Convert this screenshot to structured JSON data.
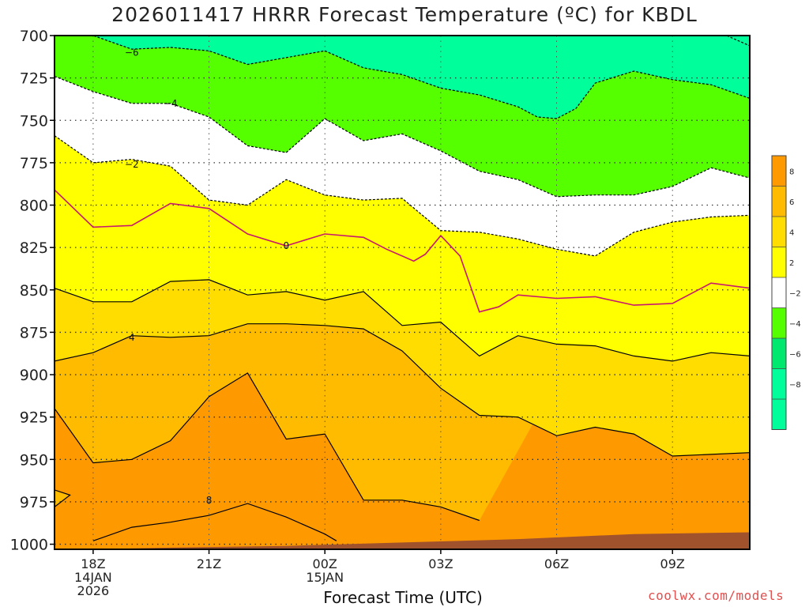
{
  "title": "2026011417 HRRR Forecast Temperature (ºC) for KBDL",
  "credit": "coolwx.com/models",
  "colors": {
    "bands": {
      "lt_-8": "#00ff9a",
      "-8_-6": "#00ff9a",
      "-6_-4": "#00e86e",
      "-4_-2": "#55ff00",
      "-2_2": "#ffffff",
      "2_4": "#ffff00",
      "4_6": "#ffdd00",
      "6_8": "#ffbb00",
      "gt_8": "#ff9900"
    },
    "zero_contour": "#c8186e",
    "ground": "#a0522d"
  },
  "chart_data": {
    "type": "contour",
    "title": "2026011417 HRRR Forecast Temperature (ºC) for KBDL",
    "xlabel": "Forecast Time (UTC)",
    "ylabel": "",
    "x_ticks": [
      {
        "hour": 1,
        "label": "18Z",
        "sub": [
          "14JAN",
          "2026"
        ]
      },
      {
        "hour": 4,
        "label": "21Z",
        "sub": []
      },
      {
        "hour": 7,
        "label": "00Z",
        "sub": [
          "15JAN"
        ]
      },
      {
        "hour": 10,
        "label": "03Z",
        "sub": []
      },
      {
        "hour": 13,
        "label": "06Z",
        "sub": []
      },
      {
        "hour": 16,
        "label": "09Z",
        "sub": []
      }
    ],
    "xlim": [
      0,
      18
    ],
    "y_ticks": [
      700,
      725,
      750,
      775,
      800,
      825,
      850,
      875,
      900,
      925,
      950,
      975,
      1000
    ],
    "ylim": [
      1003,
      700
    ],
    "colorbar": {
      "levels": [
        8,
        6,
        4,
        2,
        -2,
        -4,
        -6,
        -8
      ]
    },
    "contours": [
      {
        "level": -6,
        "label": "−6",
        "label_at": [
          2,
          710
        ],
        "points": [
          [
            0,
            698
          ],
          [
            1,
            700
          ],
          [
            2,
            708
          ],
          [
            3,
            707
          ],
          [
            4,
            709
          ],
          [
            5,
            717
          ],
          [
            6,
            713
          ],
          [
            7,
            709
          ],
          [
            8,
            719
          ],
          [
            9,
            723
          ],
          [
            10,
            731
          ],
          [
            11,
            735
          ],
          [
            12,
            742
          ],
          [
            12.5,
            748
          ],
          [
            13,
            749
          ],
          [
            13.5,
            743
          ],
          [
            14,
            728
          ],
          [
            15,
            721
          ],
          [
            16,
            726
          ],
          [
            17,
            729
          ],
          [
            18,
            737
          ]
        ]
      },
      {
        "level": -6,
        "label": "",
        "label_at": [],
        "points": [
          [
            16.8,
            698
          ],
          [
            17.4,
            700
          ],
          [
            18,
            706
          ]
        ]
      },
      {
        "level": -4,
        "label": "−4",
        "label_at": [
          3,
          740
        ],
        "points": [
          [
            0,
            724
          ],
          [
            1,
            733
          ],
          [
            2,
            740
          ],
          [
            3,
            740
          ],
          [
            4,
            748
          ],
          [
            5,
            765
          ],
          [
            6,
            769
          ],
          [
            7,
            749
          ],
          [
            8,
            762
          ],
          [
            9,
            758
          ],
          [
            10,
            768
          ],
          [
            11,
            780
          ],
          [
            12,
            785
          ],
          [
            13,
            795
          ],
          [
            14,
            794
          ],
          [
            15,
            794
          ],
          [
            16,
            789
          ],
          [
            17,
            778
          ],
          [
            18,
            784
          ]
        ]
      },
      {
        "level": -2,
        "label": "−2",
        "label_at": [
          2,
          776
        ],
        "points": [
          [
            0,
            759
          ],
          [
            1,
            775
          ],
          [
            2,
            773
          ],
          [
            3,
            777
          ],
          [
            4,
            797
          ],
          [
            5,
            800
          ],
          [
            6,
            785
          ],
          [
            7,
            794
          ],
          [
            8,
            797
          ],
          [
            9,
            796
          ],
          [
            10,
            815
          ],
          [
            11,
            816
          ],
          [
            12,
            820
          ],
          [
            13,
            826
          ],
          [
            14,
            830
          ],
          [
            15,
            816
          ],
          [
            16,
            810
          ],
          [
            17,
            807
          ],
          [
            18,
            806
          ]
        ]
      },
      {
        "level": 0,
        "label": "0",
        "label_at": [
          6,
          824
        ],
        "points": [
          [
            0,
            791
          ],
          [
            1,
            813
          ],
          [
            2,
            812
          ],
          [
            3,
            799
          ],
          [
            4,
            802
          ],
          [
            5,
            817
          ],
          [
            6,
            824
          ],
          [
            7,
            817
          ],
          [
            8,
            819
          ],
          [
            8.6,
            826
          ],
          [
            9.3,
            833
          ],
          [
            9.6,
            829
          ],
          [
            10,
            818
          ],
          [
            10.5,
            830
          ],
          [
            11,
            863
          ],
          [
            11.5,
            860
          ],
          [
            12,
            853
          ],
          [
            13,
            855
          ],
          [
            14,
            854
          ],
          [
            15,
            859
          ],
          [
            16,
            858
          ],
          [
            17,
            846
          ],
          [
            18,
            849
          ]
        ]
      },
      {
        "level": 2,
        "label": "",
        "label_at": [],
        "points": [
          [
            0,
            849
          ],
          [
            1,
            857
          ],
          [
            2,
            857
          ],
          [
            3,
            845
          ],
          [
            4,
            844
          ],
          [
            5,
            853
          ],
          [
            6,
            851
          ],
          [
            7,
            856
          ],
          [
            8,
            851
          ],
          [
            9,
            871
          ],
          [
            10,
            869
          ],
          [
            11,
            889
          ],
          [
            12,
            877
          ],
          [
            13,
            882
          ],
          [
            14,
            883
          ],
          [
            15,
            889
          ],
          [
            16,
            892
          ],
          [
            17,
            887
          ],
          [
            18,
            889
          ]
        ]
      },
      {
        "level": 4,
        "label": "4",
        "label_at": [
          2,
          878
        ],
        "points": [
          [
            0,
            892
          ],
          [
            1,
            887
          ],
          [
            2,
            877
          ],
          [
            3,
            878
          ],
          [
            4,
            877
          ],
          [
            5,
            870
          ],
          [
            6,
            870
          ],
          [
            7,
            871
          ],
          [
            8,
            873
          ],
          [
            9,
            886
          ],
          [
            10,
            908
          ],
          [
            11,
            924
          ],
          [
            12,
            925
          ],
          [
            13,
            936
          ],
          [
            14,
            931
          ],
          [
            15,
            935
          ],
          [
            16,
            948
          ],
          [
            17,
            947
          ],
          [
            18,
            946
          ]
        ]
      },
      {
        "level": 6,
        "label": "",
        "label_at": [],
        "points": [
          [
            0,
            920
          ],
          [
            1,
            952
          ],
          [
            2,
            950
          ],
          [
            3,
            939
          ],
          [
            4,
            913
          ],
          [
            5,
            899
          ],
          [
            6,
            938
          ],
          [
            7,
            935
          ],
          [
            8,
            974
          ],
          [
            9,
            974
          ],
          [
            10,
            978
          ],
          [
            11,
            986
          ]
        ]
      },
      {
        "level": 8,
        "label": "8",
        "label_at": [
          4,
          974
        ],
        "points": [
          [
            1,
            998
          ],
          [
            2,
            990
          ],
          [
            3,
            987
          ],
          [
            4,
            983
          ],
          [
            5,
            976
          ],
          [
            6,
            984
          ],
          [
            7,
            994
          ],
          [
            7.3,
            998
          ]
        ]
      },
      {
        "level": 6,
        "label": "",
        "label_at": [],
        "points": [
          [
            0,
            968
          ],
          [
            0.4,
            971
          ],
          [
            0,
            978
          ]
        ]
      }
    ],
    "ground_surface_hpa": [
      [
        0,
        1003
      ],
      [
        1,
        1003
      ],
      [
        3,
        1002
      ],
      [
        6,
        1001
      ],
      [
        9,
        999
      ],
      [
        12,
        997
      ],
      [
        15,
        994
      ],
      [
        18,
        993
      ]
    ]
  }
}
